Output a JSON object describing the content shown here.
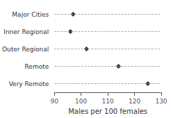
{
  "chart_data": {
    "type": "dot",
    "orientation": "horizontal",
    "categories": [
      "Major Cities",
      "Inner Regional",
      "Outer Regional",
      "Remote",
      "Very Remote"
    ],
    "values": [
      97,
      96,
      102,
      114,
      125
    ],
    "xlabel": "Males per 100 females",
    "xlim": [
      90,
      130
    ],
    "xticks": [
      90,
      100,
      110,
      120,
      130
    ],
    "marker": "diamond",
    "color": "black",
    "grid": true
  }
}
